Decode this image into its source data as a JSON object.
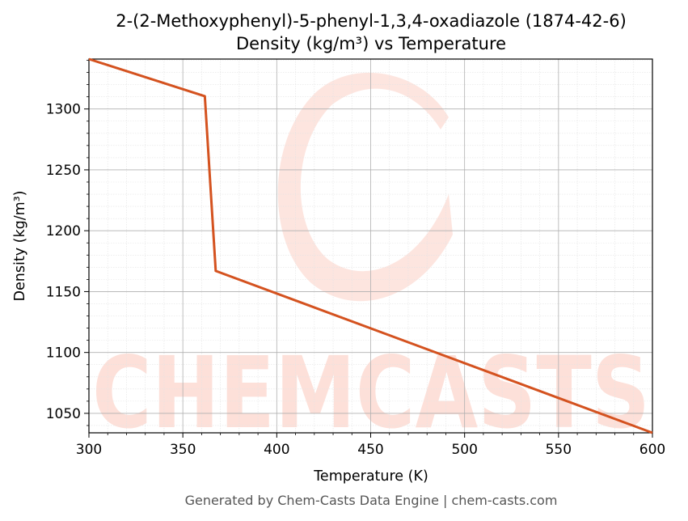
{
  "chart_data": {
    "type": "line",
    "title": "2-(2-Methoxyphenyl)-5-phenyl-1,3,4-oxadiazole (1874-42-6)",
    "subtitle": "Density (kg/m³) vs Temperature",
    "xlabel": "Temperature (K)",
    "ylabel": "Density (kg/m³)",
    "xlim": [
      300,
      600
    ],
    "ylim": [
      1034,
      1341
    ],
    "xticks": [
      300,
      350,
      400,
      450,
      500,
      550,
      600
    ],
    "yticks": [
      1050,
      1100,
      1150,
      1200,
      1250,
      1300
    ],
    "grid": true,
    "series": [
      {
        "color": "#d4521f",
        "x": [
          300,
          361.7,
          367.5,
          600
        ],
        "y": [
          1341,
          1310.5,
          1167,
          1034
        ]
      }
    ]
  },
  "watermark": {
    "text": "CHEMCASTS",
    "color": "#fde0d9"
  },
  "footer": "Generated by Chem-Casts Data Engine | chem-casts.com"
}
